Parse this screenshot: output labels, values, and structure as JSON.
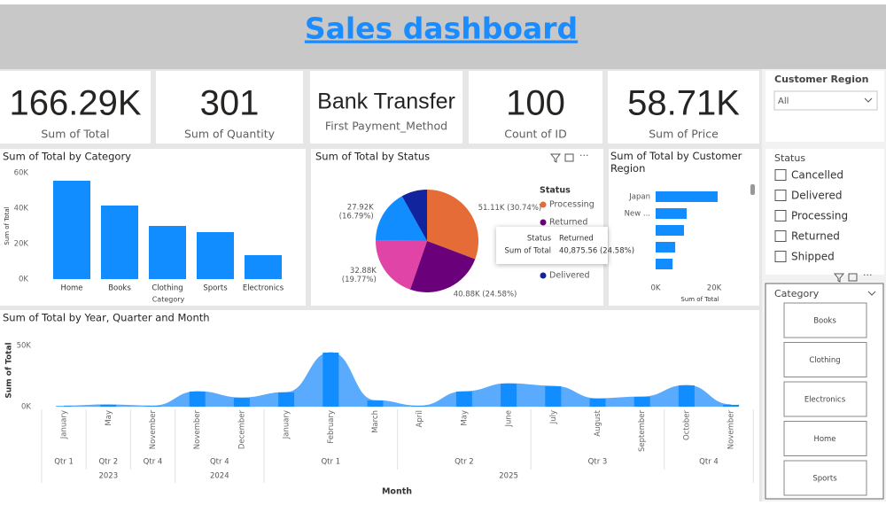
{
  "header": {
    "title": "Sales dashboard"
  },
  "kpis": [
    {
      "value": "166.29K",
      "label": "Sum of Total"
    },
    {
      "value": "301",
      "label": "Sum of Quantity"
    },
    {
      "value": "Bank Transfer",
      "label": "First Payment_Method"
    },
    {
      "value": "100",
      "label": "Count of ID"
    },
    {
      "value": "58.71K",
      "label": "Sum of Price"
    }
  ],
  "slicers": {
    "customer_region": {
      "title": "Customer Region",
      "selected": "All"
    },
    "status": {
      "title": "Status",
      "options": [
        "Cancelled",
        "Delivered",
        "Processing",
        "Returned",
        "Shipped"
      ]
    },
    "category": {
      "title": "Category",
      "options": [
        "Books",
        "Clothing",
        "Electronics",
        "Home",
        "Sports"
      ]
    }
  },
  "chart_data": [
    {
      "type": "bar",
      "title": "Sum of Total by Category",
      "x_label": "Category",
      "y_label": "Sum of Total",
      "categories": [
        "Home",
        "Books",
        "Clothing",
        "Sports",
        "Electronics"
      ],
      "values": [
        55500,
        41500,
        30000,
        26500,
        13500
      ],
      "color": "#118dff",
      "ylim": [
        0,
        60000
      ],
      "yticks": [
        {
          "value": 0,
          "label": "0K"
        },
        {
          "value": 20000,
          "label": "20K"
        },
        {
          "value": 40000,
          "label": "40K"
        },
        {
          "value": 60000,
          "label": "60K"
        }
      ]
    },
    {
      "type": "pie",
      "title": "Sum of Total by Status",
      "legend_title": "Status",
      "categories": [
        "Processing",
        "Returned",
        null,
        null,
        "Delivered"
      ],
      "values": [
        51.11,
        40.88,
        32.88,
        27.92,
        13.5
      ],
      "value_labels": [
        "51.11K (30.74%)",
        "40.88K (24.58%)",
        "32.88K (19.77%)",
        "27.92K (16.79%)",
        null
      ],
      "colors": [
        "#e66c37",
        "#6b007b",
        "#e044a7",
        "#118dff",
        "#12239e"
      ],
      "tooltip": [
        {
          "label": "Status",
          "value": "Returned"
        },
        {
          "label": "Sum of Total",
          "value": "40,875.56 (24.58%)"
        }
      ]
    },
    {
      "type": "hbar",
      "title": "Sum of Total by Customer Region",
      "x_label": "Sum of Total",
      "categories": [
        "Japan",
        "New ...",
        null,
        null,
        null
      ],
      "values": [
        21200,
        10600,
        9700,
        6700,
        5800
      ],
      "color": "#118dff",
      "xlim": [
        0,
        30000
      ],
      "xticks": [
        {
          "value": 0,
          "label": "0K"
        },
        {
          "value": 20000,
          "label": "20K"
        }
      ]
    },
    {
      "type": "area",
      "title": "Sum of Total by Year, Quarter and Month",
      "x_label": "Month",
      "y_label": "Sum of Total",
      "categories": [
        "January",
        "May",
        "November",
        "November",
        "December",
        "January",
        "February",
        "March",
        "April",
        "May",
        "June",
        "July",
        "August",
        "September",
        "October",
        "November"
      ],
      "values": [
        500,
        1500,
        500,
        12300,
        7200,
        11600,
        44200,
        5000,
        500,
        12300,
        18800,
        16700,
        6500,
        8000,
        17400,
        1500
      ],
      "quarters": [
        {
          "label": "Qtr 1",
          "count": 1
        },
        {
          "label": "Qtr 2",
          "count": 1
        },
        {
          "label": "Qtr 4",
          "count": 1
        },
        {
          "label": "Qtr 4",
          "count": 2
        },
        {
          "label": "Qtr 1",
          "count": 3
        },
        {
          "label": "Qtr 2",
          "count": 3
        },
        {
          "label": "Qtr 3",
          "count": 3
        },
        {
          "label": "Qtr 4",
          "count": 2
        }
      ],
      "years": [
        {
          "label": "2023",
          "count": 3
        },
        {
          "label": "2024",
          "count": 2
        },
        {
          "label": "2025",
          "count": 11
        }
      ],
      "color": "#5aabfd",
      "bar_color": "#118dff",
      "ylim": [
        0,
        55000
      ],
      "yticks": [
        {
          "value": 0,
          "label": "0K"
        },
        {
          "value": 50000,
          "label": "50K"
        }
      ]
    }
  ]
}
